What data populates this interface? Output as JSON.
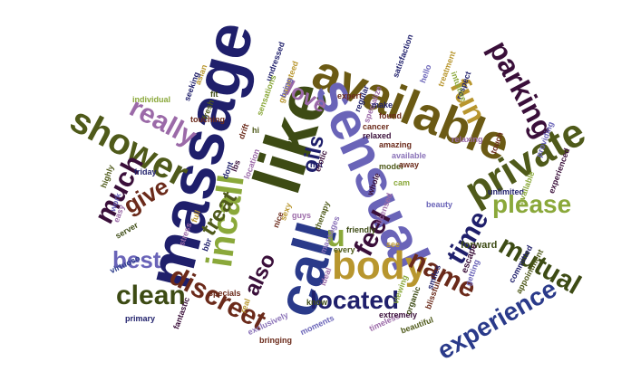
{
  "colors": {
    "background": "#ffffff",
    "dark_green": "#3d4b14",
    "olive": "#6b5a14",
    "navy": "#1f1f6b",
    "purple_blue": "#6a64b8",
    "plum": "#3a0f3a",
    "lavender": "#8a72b8",
    "gold": "#b8962e",
    "light_green": "#8aa83a",
    "brown_red": "#6b2a1a",
    "orchid": "#9b6aa8",
    "dark_olive": "#4f5a1a",
    "deep_blue": "#2a3a8a"
  },
  "words": [
    {
      "text": "massage",
      "color": "navy"
    },
    {
      "text": "available",
      "color": "olive"
    },
    {
      "text": "like",
      "color": "dark_green"
    },
    {
      "text": "sensual",
      "color": "purple_blue"
    },
    {
      "text": "incall",
      "color": "light_green"
    },
    {
      "text": "call",
      "color": "deep_blue"
    },
    {
      "text": "body",
      "color": "gold"
    },
    {
      "text": "private",
      "color": "dark_olive"
    },
    {
      "text": "shower",
      "color": "dark_olive"
    },
    {
      "text": "fun",
      "color": "gold"
    },
    {
      "text": "parking",
      "color": "plum"
    },
    {
      "text": "really",
      "color": "orchid"
    },
    {
      "text": "much",
      "color": "plum"
    },
    {
      "text": "love",
      "color": "orchid"
    },
    {
      "text": "oils",
      "color": "navy"
    },
    {
      "text": "give",
      "color": "brown_red"
    },
    {
      "text": "please",
      "color": "light_green"
    },
    {
      "text": "mutual",
      "color": "dark_green"
    },
    {
      "text": "experience",
      "color": "deep_blue"
    },
    {
      "text": "time",
      "color": "navy"
    },
    {
      "text": "name",
      "color": "brown_red"
    },
    {
      "text": "feel",
      "color": "plum"
    },
    {
      "text": "treat",
      "color": "dark_olive"
    },
    {
      "text": "best",
      "color": "purple_blue"
    },
    {
      "text": "clean",
      "color": "dark_green"
    },
    {
      "text": "discreet",
      "color": "brown_red"
    },
    {
      "text": "located",
      "color": "navy"
    },
    {
      "text": "also",
      "color": "plum"
    },
    {
      "text": "u",
      "color": "light_green"
    },
    {
      "text": "touch",
      "color": "brown_red"
    },
    {
      "text": "beautiful",
      "color": "dark_olive"
    },
    {
      "text": "massages",
      "color": "lavender"
    },
    {
      "text": "expert",
      "color": "brown_red"
    },
    {
      "text": "satisfaction",
      "color": "navy"
    },
    {
      "text": "hello",
      "color": "purple_blue"
    },
    {
      "text": "treatment",
      "color": "gold"
    },
    {
      "text": "respect",
      "color": "navy"
    },
    {
      "text": "unlimited",
      "color": "navy"
    },
    {
      "text": "forward",
      "color": "dark_green"
    },
    {
      "text": "escape",
      "color": "plum"
    },
    {
      "text": "committed",
      "color": "navy"
    },
    {
      "text": "appointment",
      "color": "dark_olive"
    },
    {
      "text": "relaxing",
      "color": "orchid"
    },
    {
      "text": "amazing",
      "color": "brown_red"
    },
    {
      "text": "available",
      "color": "lavender"
    },
    {
      "text": "friendly",
      "color": "dark_green"
    },
    {
      "text": "licensed",
      "color": "orchid"
    },
    {
      "text": "beauty",
      "color": "purple_blue"
    },
    {
      "text": "cancer",
      "color": "brown_red"
    },
    {
      "text": "relaxed",
      "color": "plum"
    },
    {
      "text": "model",
      "color": "dark_olive"
    },
    {
      "text": "regular",
      "color": "navy"
    },
    {
      "text": "guaranteed",
      "color": "gold"
    },
    {
      "text": "undressed",
      "color": "navy"
    },
    {
      "text": "individual",
      "color": "light_green"
    },
    {
      "text": "touching",
      "color": "brown_red"
    },
    {
      "text": "friday",
      "color": "navy"
    },
    {
      "text": "highly",
      "color": "dark_olive"
    },
    {
      "text": "work",
      "color": "purple_blue"
    },
    {
      "text": "easy",
      "color": "orchid"
    },
    {
      "text": "server",
      "color": "dark_green"
    },
    {
      "text": "virtuoso",
      "color": "deep_blue"
    },
    {
      "text": "primary",
      "color": "navy"
    },
    {
      "text": "fantastic",
      "color": "plum"
    },
    {
      "text": "specials",
      "color": "brown_red"
    },
    {
      "text": "real",
      "color": "gold"
    },
    {
      "text": "exclusively",
      "color": "lavender"
    },
    {
      "text": "bringing",
      "color": "brown_red"
    },
    {
      "text": "moments",
      "color": "purple_blue"
    },
    {
      "text": "timeless",
      "color": "orchid"
    },
    {
      "text": "extremely",
      "color": "plum"
    },
    {
      "text": "organic",
      "color": "dark_green"
    },
    {
      "text": "blissful",
      "color": "brown_red"
    },
    {
      "text": "smiles",
      "color": "navy"
    },
    {
      "text": "getting",
      "color": "purple_blue"
    },
    {
      "text": "viewing",
      "color": "light_green"
    },
    {
      "text": "every",
      "color": "dark_olive"
    },
    {
      "text": "ideal",
      "color": "orchid"
    },
    {
      "text": "sexy",
      "color": "gold"
    },
    {
      "text": "hot",
      "color": "navy"
    },
    {
      "text": "erotic",
      "color": "plum"
    },
    {
      "text": "sorry",
      "color": "dark_green"
    },
    {
      "text": "away",
      "color": "brown_red"
    },
    {
      "text": "cam",
      "color": "light_green"
    },
    {
      "text": "stress",
      "color": "orchid"
    },
    {
      "text": "providing",
      "color": "purple_blue"
    },
    {
      "text": "intuitive",
      "color": "light_green"
    },
    {
      "text": "therapy",
      "color": "dark_olive"
    },
    {
      "text": "see",
      "color": "gold"
    },
    {
      "text": "drift",
      "color": "brown_red"
    },
    {
      "text": "dont",
      "color": "navy"
    },
    {
      "text": "know",
      "color": "dark_green"
    },
    {
      "text": "guys",
      "color": "orchid"
    },
    {
      "text": "whole",
      "color": "plum"
    },
    {
      "text": "bring",
      "color": "purple_blue"
    },
    {
      "text": "experienced",
      "color": "plum"
    },
    {
      "text": "specialize",
      "color": "orchid"
    },
    {
      "text": "make",
      "color": "navy"
    },
    {
      "text": "found",
      "color": "brown_red"
    },
    {
      "text": "asian",
      "color": "gold"
    },
    {
      "text": "fresh",
      "color": "dark_olive"
    },
    {
      "text": "sensations",
      "color": "light_green"
    },
    {
      "text": "seeking",
      "color": "navy"
    },
    {
      "text": "fit",
      "color": "dark_green"
    },
    {
      "text": "lbs",
      "color": "plum"
    },
    {
      "text": "location",
      "color": "orchid"
    },
    {
      "text": "nice",
      "color": "brown_red"
    },
    {
      "text": "full",
      "color": "gold"
    },
    {
      "text": "bbr",
      "color": "navy"
    },
    {
      "text": "available",
      "color": "light_green"
    },
    {
      "text": "hi",
      "color": "dark_olive"
    }
  ]
}
